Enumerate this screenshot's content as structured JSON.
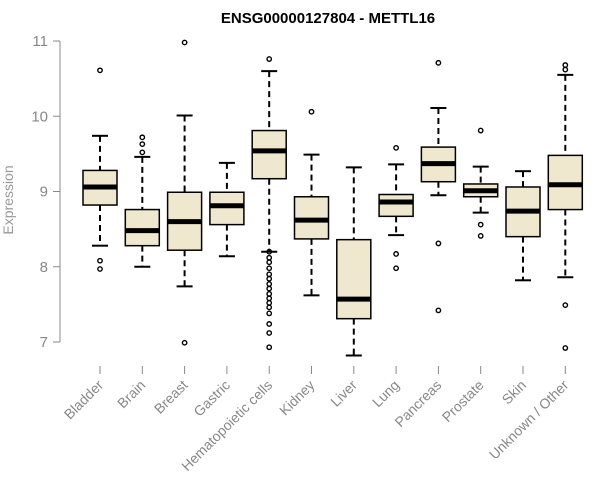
{
  "chart_data": {
    "type": "boxplot",
    "title": "ENSG00000127804 - METTL16",
    "xlabel": "",
    "ylabel": "Expression",
    "ylim": [
      6.7,
      11.2
    ],
    "yticks": [
      7,
      8,
      9,
      10,
      11
    ],
    "box_fill": "#efe8cf",
    "categories": [
      "Bladder",
      "Brain",
      "Breast",
      "Gastric",
      "Hematopoietic cells",
      "Kidney",
      "Liver",
      "Lung",
      "Pancreas",
      "Prostate",
      "Skin",
      "Unknown / Other"
    ],
    "boxes": [
      {
        "min": 8.28,
        "q1": 8.82,
        "median": 9.06,
        "q3": 9.28,
        "max": 9.74,
        "outliers": [
          10.61,
          8.08,
          7.97
        ]
      },
      {
        "min": 8.0,
        "q1": 8.28,
        "median": 8.48,
        "q3": 8.76,
        "max": 9.46,
        "outliers": [
          9.72,
          9.63,
          9.52
        ]
      },
      {
        "min": 7.74,
        "q1": 8.22,
        "median": 8.6,
        "q3": 8.99,
        "max": 10.01,
        "outliers": [
          10.98,
          6.99
        ]
      },
      {
        "min": 8.14,
        "q1": 8.56,
        "median": 8.81,
        "q3": 8.99,
        "max": 9.38,
        "outliers": []
      },
      {
        "min": 8.2,
        "q1": 9.17,
        "median": 9.54,
        "q3": 9.81,
        "max": 10.6,
        "outliers": [
          10.76,
          8.2,
          8.12,
          8.06,
          7.98,
          7.9,
          7.84,
          7.77,
          7.71,
          7.64,
          7.58,
          7.52,
          7.46,
          7.38,
          7.24,
          7.12,
          6.93
        ]
      },
      {
        "min": 7.62,
        "q1": 8.37,
        "median": 8.62,
        "q3": 8.93,
        "max": 9.49,
        "outliers": [
          10.06
        ]
      },
      {
        "min": 6.82,
        "q1": 7.31,
        "median": 7.57,
        "q3": 8.36,
        "max": 9.32,
        "outliers": []
      },
      {
        "min": 8.42,
        "q1": 8.67,
        "median": 8.86,
        "q3": 8.96,
        "max": 9.36,
        "outliers": [
          9.58,
          8.17,
          7.98
        ]
      },
      {
        "min": 8.95,
        "q1": 9.13,
        "median": 9.37,
        "q3": 9.59,
        "max": 10.11,
        "outliers": [
          10.71,
          8.31,
          7.42
        ]
      },
      {
        "min": 8.72,
        "q1": 8.93,
        "median": 9.01,
        "q3": 9.1,
        "max": 9.33,
        "outliers": [
          9.81,
          8.56,
          8.41
        ]
      },
      {
        "min": 7.82,
        "q1": 8.4,
        "median": 8.74,
        "q3": 9.06,
        "max": 9.27,
        "outliers": []
      },
      {
        "min": 7.86,
        "q1": 8.76,
        "median": 9.09,
        "q3": 9.48,
        "max": 10.55,
        "outliers": [
          10.68,
          10.62,
          7.49,
          6.92
        ]
      }
    ]
  }
}
